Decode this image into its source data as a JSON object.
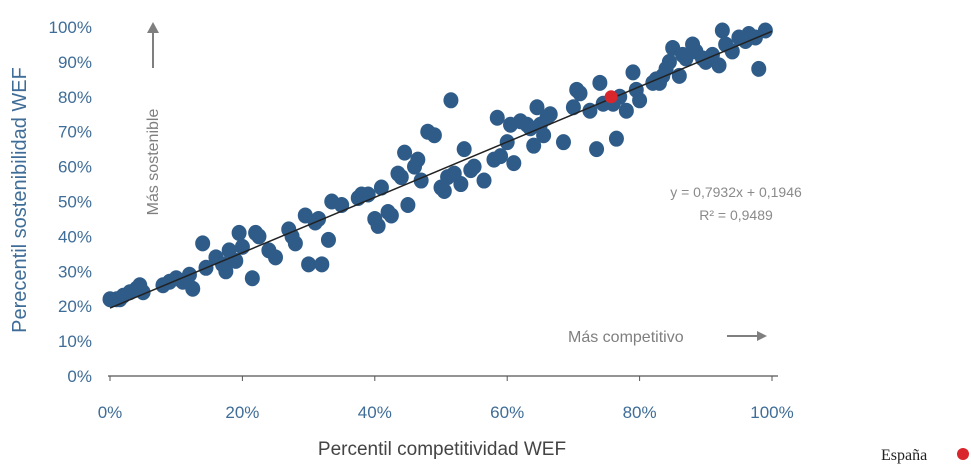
{
  "chart_data": {
    "type": "scatter",
    "xlabel": "Percentil competitividad  WEF",
    "ylabel": "Perecentil sostenibilidad WEF",
    "xlim": [
      0,
      1
    ],
    "ylim": [
      0,
      1
    ],
    "x_ticks": [
      "0%",
      "20%",
      "40%",
      "60%",
      "80%",
      "100%"
    ],
    "y_ticks": [
      "0%",
      "10%",
      "20%",
      "30%",
      "40%",
      "50%",
      "60%",
      "70%",
      "80%",
      "90%",
      "100%"
    ],
    "annotations": {
      "up_arrow_label": "Más sostenible",
      "right_arrow_label": "Más competitivo",
      "equation": "y = 0,7932x + 0,1946",
      "r_squared": "R² = 0,9489"
    },
    "trendline": {
      "slope": 0.7932,
      "intercept": 0.1946,
      "color": "#222222"
    },
    "highlight": {
      "name": "España",
      "color": "#d9262c",
      "x": 0.757,
      "y": 0.8
    },
    "series": [
      {
        "color": "#2e5b88",
        "points": [
          [
            0.0,
            0.22
          ],
          [
            0.01,
            0.22
          ],
          [
            0.015,
            0.22
          ],
          [
            0.02,
            0.23
          ],
          [
            0.03,
            0.24
          ],
          [
            0.04,
            0.25
          ],
          [
            0.045,
            0.26
          ],
          [
            0.05,
            0.24
          ],
          [
            0.08,
            0.26
          ],
          [
            0.09,
            0.27
          ],
          [
            0.1,
            0.28
          ],
          [
            0.11,
            0.27
          ],
          [
            0.12,
            0.29
          ],
          [
            0.125,
            0.25
          ],
          [
            0.14,
            0.38
          ],
          [
            0.145,
            0.31
          ],
          [
            0.16,
            0.34
          ],
          [
            0.17,
            0.32
          ],
          [
            0.175,
            0.3
          ],
          [
            0.18,
            0.36
          ],
          [
            0.19,
            0.33
          ],
          [
            0.195,
            0.41
          ],
          [
            0.2,
            0.37
          ],
          [
            0.215,
            0.28
          ],
          [
            0.22,
            0.41
          ],
          [
            0.225,
            0.4
          ],
          [
            0.24,
            0.36
          ],
          [
            0.25,
            0.34
          ],
          [
            0.27,
            0.42
          ],
          [
            0.275,
            0.4
          ],
          [
            0.28,
            0.38
          ],
          [
            0.295,
            0.46
          ],
          [
            0.3,
            0.32
          ],
          [
            0.31,
            0.44
          ],
          [
            0.315,
            0.45
          ],
          [
            0.32,
            0.32
          ],
          [
            0.33,
            0.39
          ],
          [
            0.335,
            0.5
          ],
          [
            0.35,
            0.49
          ],
          [
            0.375,
            0.51
          ],
          [
            0.38,
            0.52
          ],
          [
            0.39,
            0.52
          ],
          [
            0.4,
            0.45
          ],
          [
            0.405,
            0.43
          ],
          [
            0.41,
            0.54
          ],
          [
            0.42,
            0.47
          ],
          [
            0.425,
            0.46
          ],
          [
            0.435,
            0.58
          ],
          [
            0.44,
            0.57
          ],
          [
            0.445,
            0.64
          ],
          [
            0.45,
            0.49
          ],
          [
            0.46,
            0.6
          ],
          [
            0.465,
            0.62
          ],
          [
            0.47,
            0.56
          ],
          [
            0.48,
            0.7
          ],
          [
            0.49,
            0.69
          ],
          [
            0.5,
            0.54
          ],
          [
            0.505,
            0.53
          ],
          [
            0.51,
            0.57
          ],
          [
            0.515,
            0.79
          ],
          [
            0.52,
            0.58
          ],
          [
            0.53,
            0.55
          ],
          [
            0.535,
            0.65
          ],
          [
            0.545,
            0.59
          ],
          [
            0.55,
            0.6
          ],
          [
            0.565,
            0.56
          ],
          [
            0.58,
            0.62
          ],
          [
            0.585,
            0.74
          ],
          [
            0.59,
            0.63
          ],
          [
            0.6,
            0.67
          ],
          [
            0.605,
            0.72
          ],
          [
            0.61,
            0.61
          ],
          [
            0.62,
            0.73
          ],
          [
            0.63,
            0.72
          ],
          [
            0.635,
            0.71
          ],
          [
            0.64,
            0.66
          ],
          [
            0.645,
            0.77
          ],
          [
            0.65,
            0.72
          ],
          [
            0.655,
            0.69
          ],
          [
            0.66,
            0.74
          ],
          [
            0.665,
            0.75
          ],
          [
            0.685,
            0.67
          ],
          [
            0.7,
            0.77
          ],
          [
            0.705,
            0.82
          ],
          [
            0.71,
            0.81
          ],
          [
            0.725,
            0.76
          ],
          [
            0.735,
            0.65
          ],
          [
            0.74,
            0.84
          ],
          [
            0.745,
            0.78
          ],
          [
            0.76,
            0.78
          ],
          [
            0.765,
            0.68
          ],
          [
            0.77,
            0.8
          ],
          [
            0.78,
            0.76
          ],
          [
            0.79,
            0.87
          ],
          [
            0.795,
            0.82
          ],
          [
            0.8,
            0.79
          ],
          [
            0.82,
            0.84
          ],
          [
            0.825,
            0.85
          ],
          [
            0.83,
            0.84
          ],
          [
            0.835,
            0.86
          ],
          [
            0.84,
            0.88
          ],
          [
            0.845,
            0.9
          ],
          [
            0.85,
            0.94
          ],
          [
            0.86,
            0.86
          ],
          [
            0.865,
            0.92
          ],
          [
            0.87,
            0.91
          ],
          [
            0.88,
            0.95
          ],
          [
            0.885,
            0.93
          ],
          [
            0.895,
            0.91
          ],
          [
            0.9,
            0.9
          ],
          [
            0.91,
            0.92
          ],
          [
            0.92,
            0.89
          ],
          [
            0.925,
            0.99
          ],
          [
            0.93,
            0.95
          ],
          [
            0.94,
            0.93
          ],
          [
            0.95,
            0.97
          ],
          [
            0.96,
            0.96
          ],
          [
            0.965,
            0.98
          ],
          [
            0.975,
            0.97
          ],
          [
            0.98,
            0.88
          ],
          [
            0.99,
            0.99
          ]
        ]
      }
    ]
  }
}
